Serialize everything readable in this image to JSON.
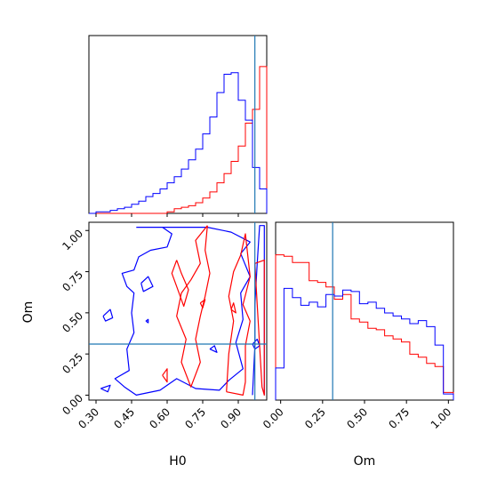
{
  "chart_data": {
    "type": "corner",
    "colors": {
      "red": "#ff0000",
      "blue": "#0000ff",
      "truth": "#1f77b4",
      "axis": "#000000"
    },
    "truth": {
      "H0": 0.97,
      "Om": 0.31
    },
    "panels": [
      {
        "id": "hist-H0",
        "type": "step-histogram",
        "xlim": [
          0.27,
          1.02
        ],
        "ylim": [
          0,
          1.0
        ],
        "bin_edges": [
          0.27,
          0.3,
          0.33,
          0.36,
          0.39,
          0.42,
          0.45,
          0.48,
          0.51,
          0.54,
          0.57,
          0.6,
          0.63,
          0.66,
          0.69,
          0.72,
          0.75,
          0.78,
          0.81,
          0.84,
          0.87,
          0.9,
          0.93,
          0.96,
          0.99,
          1.02
        ],
        "series": [
          {
            "color": "red",
            "values": [
              0,
              0,
              0,
              0,
              0,
              0,
              0,
              0,
              0,
              0,
              0,
              0.01,
              0.03,
              0.04,
              0.05,
              0.07,
              0.1,
              0.14,
              0.2,
              0.26,
              0.34,
              0.44,
              0.59,
              0.68,
              0.96
            ]
          },
          {
            "color": "blue",
            "values": [
              0,
              0.01,
              0.01,
              0.02,
              0.03,
              0.04,
              0.06,
              0.08,
              0.11,
              0.13,
              0.16,
              0.2,
              0.24,
              0.29,
              0.35,
              0.42,
              0.52,
              0.63,
              0.79,
              0.91,
              0.92,
              0.74,
              0.61,
              0.3,
              0.16
            ]
          }
        ]
      },
      {
        "id": "hist-Om",
        "type": "step-histogram",
        "xlim": [
          -0.03,
          1.03
        ],
        "ylim": [
          0,
          1.0
        ],
        "bin_edges": [
          -0.03,
          0.02,
          0.07,
          0.12,
          0.17,
          0.22,
          0.27,
          0.32,
          0.37,
          0.42,
          0.47,
          0.52,
          0.57,
          0.62,
          0.67,
          0.72,
          0.77,
          0.82,
          0.87,
          0.92,
          0.97,
          1.03
        ],
        "series": [
          {
            "color": "red",
            "values": [
              0.95,
              0.94,
              0.9,
              0.9,
              0.78,
              0.77,
              0.74,
              0.66,
              0.69,
              0.53,
              0.51,
              0.47,
              0.46,
              0.42,
              0.4,
              0.38,
              0.3,
              0.28,
              0.24,
              0.22,
              0.05
            ]
          },
          {
            "color": "blue",
            "values": [
              0.21,
              0.73,
              0.67,
              0.62,
              0.64,
              0.61,
              0.69,
              0.68,
              0.72,
              0.71,
              0.63,
              0.64,
              0.6,
              0.57,
              0.55,
              0.53,
              0.5,
              0.52,
              0.48,
              0.36,
              0.04
            ]
          }
        ]
      },
      {
        "id": "contour-H0-Om",
        "type": "contour",
        "xlim": [
          0.27,
          1.02
        ],
        "ylim": [
          -0.03,
          1.05
        ],
        "xlabel": "H0",
        "ylabel": "Om",
        "xticks": [
          "0.30",
          "0.45",
          "0.60",
          "0.75",
          "0.90"
        ],
        "yticks": [
          "0.00",
          "0.25",
          "0.50",
          "0.75",
          "1.00"
        ],
        "contours": [
          {
            "color": "blue",
            "points": [
              [
                0.47,
                1.02
              ],
              [
                0.58,
                1.02
              ],
              [
                0.62,
                0.98
              ],
              [
                0.6,
                0.9
              ],
              [
                0.53,
                0.88
              ],
              [
                0.48,
                0.84
              ],
              [
                0.46,
                0.76
              ],
              [
                0.41,
                0.74
              ],
              [
                0.43,
                0.66
              ],
              [
                0.46,
                0.62
              ],
              [
                0.45,
                0.5
              ],
              [
                0.46,
                0.38
              ],
              [
                0.43,
                0.28
              ],
              [
                0.44,
                0.15
              ],
              [
                0.38,
                0.1
              ],
              [
                0.42,
                0.05
              ],
              [
                0.47,
                0.0
              ],
              [
                0.57,
                0.03
              ],
              [
                0.64,
                0.1
              ],
              [
                0.72,
                0.04
              ],
              [
                0.82,
                0.03
              ],
              [
                0.86,
                0.09
              ],
              [
                0.92,
                0.16
              ],
              [
                0.89,
                0.32
              ],
              [
                0.92,
                0.46
              ],
              [
                0.91,
                0.62
              ],
              [
                0.95,
                0.72
              ],
              [
                0.91,
                0.86
              ],
              [
                0.95,
                0.93
              ],
              [
                0.87,
                0.99
              ],
              [
                0.77,
                1.02
              ],
              [
                0.47,
                1.02
              ]
            ]
          },
          {
            "color": "blue",
            "points": [
              [
                0.49,
                0.68
              ],
              [
                0.52,
                0.72
              ],
              [
                0.54,
                0.66
              ],
              [
                0.5,
                0.63
              ],
              [
                0.49,
                0.68
              ]
            ]
          },
          {
            "color": "blue",
            "points": [
              [
                0.33,
                0.48
              ],
              [
                0.36,
                0.52
              ],
              [
                0.37,
                0.47
              ],
              [
                0.34,
                0.45
              ],
              [
                0.33,
                0.48
              ]
            ]
          },
          {
            "color": "blue",
            "points": [
              [
                0.32,
                0.04
              ],
              [
                0.36,
                0.06
              ],
              [
                0.35,
                0.02
              ],
              [
                0.32,
                0.04
              ]
            ]
          },
          {
            "color": "blue",
            "points": [
              [
                0.78,
                0.28
              ],
              [
                0.8,
                0.3
              ],
              [
                0.81,
                0.26
              ],
              [
                0.78,
                0.28
              ]
            ]
          },
          {
            "color": "blue",
            "points": [
              [
                0.51,
                0.45
              ],
              [
                0.52,
                0.46
              ],
              [
                0.52,
                0.44
              ],
              [
                0.51,
                0.45
              ]
            ]
          },
          {
            "color": "blue",
            "points": [
              [
                0.96,
                0.0
              ],
              [
                0.97,
                0.3
              ],
              [
                0.97,
                0.55
              ],
              [
                0.98,
                0.8
              ],
              [
                0.99,
                1.03
              ],
              [
                1.01,
                1.03
              ],
              [
                1.01,
                0.0
              ]
            ]
          },
          {
            "color": "blue",
            "points": [
              [
                0.96,
                0.31
              ],
              [
                0.98,
                0.34
              ],
              [
                0.99,
                0.3
              ],
              [
                0.97,
                0.28
              ],
              [
                0.96,
                0.31
              ]
            ]
          },
          {
            "color": "red",
            "points": [
              [
                0.77,
                1.03
              ],
              [
                0.72,
                0.94
              ],
              [
                0.74,
                0.8
              ],
              [
                0.7,
                0.7
              ],
              [
                0.66,
                0.62
              ],
              [
                0.64,
                0.48
              ],
              [
                0.68,
                0.34
              ],
              [
                0.66,
                0.2
              ],
              [
                0.7,
                0.05
              ],
              [
                0.74,
                0.2
              ],
              [
                0.72,
                0.34
              ],
              [
                0.74,
                0.48
              ],
              [
                0.76,
                0.6
              ],
              [
                0.78,
                0.74
              ],
              [
                0.76,
                0.88
              ],
              [
                0.77,
                1.03
              ]
            ]
          },
          {
            "color": "red",
            "points": [
              [
                0.64,
                0.82
              ],
              [
                0.62,
                0.74
              ],
              [
                0.64,
                0.66
              ],
              [
                0.67,
                0.54
              ],
              [
                0.69,
                0.64
              ],
              [
                0.66,
                0.74
              ],
              [
                0.64,
                0.82
              ]
            ]
          },
          {
            "color": "red",
            "points": [
              [
                0.58,
                0.12
              ],
              [
                0.6,
                0.16
              ],
              [
                0.6,
                0.08
              ],
              [
                0.58,
                0.12
              ]
            ]
          },
          {
            "color": "red",
            "points": [
              [
                0.74,
                0.56
              ],
              [
                0.76,
                0.58
              ],
              [
                0.75,
                0.53
              ],
              [
                0.74,
                0.56
              ]
            ]
          },
          {
            "color": "red",
            "points": [
              [
                0.85,
                0.02
              ],
              [
                0.86,
                0.25
              ],
              [
                0.88,
                0.45
              ],
              [
                0.86,
                0.6
              ],
              [
                0.88,
                0.75
              ],
              [
                0.91,
                0.85
              ],
              [
                0.93,
                0.98
              ],
              [
                0.95,
                0.72
              ],
              [
                0.92,
                0.55
              ],
              [
                0.95,
                0.45
              ],
              [
                0.93,
                0.3
              ],
              [
                0.93,
                0.08
              ],
              [
                0.92,
                0.0
              ],
              [
                0.85,
                0.02
              ]
            ]
          },
          {
            "color": "red",
            "points": [
              [
                0.87,
                0.52
              ],
              [
                0.88,
                0.56
              ],
              [
                0.89,
                0.5
              ],
              [
                0.87,
                0.52
              ]
            ]
          },
          {
            "color": "red",
            "points": [
              [
                0.97,
                0.8
              ],
              [
                0.98,
                0.55
              ],
              [
                0.99,
                0.3
              ],
              [
                1.0,
                0.05
              ],
              [
                1.01,
                0.0
              ],
              [
                1.01,
                0.82
              ],
              [
                0.97,
                0.8
              ]
            ]
          }
        ]
      }
    ]
  },
  "bottom_left_xticks": [
    "0.30",
    "0.45",
    "0.60",
    "0.75",
    "0.90"
  ],
  "bottom_right_xticks": [
    "0.00",
    "0.25",
    "0.50",
    "0.75",
    "1.00"
  ],
  "bottom_left_xlabel": "H0",
  "bottom_right_xlabel": "Om",
  "left_ylabel": "Om"
}
